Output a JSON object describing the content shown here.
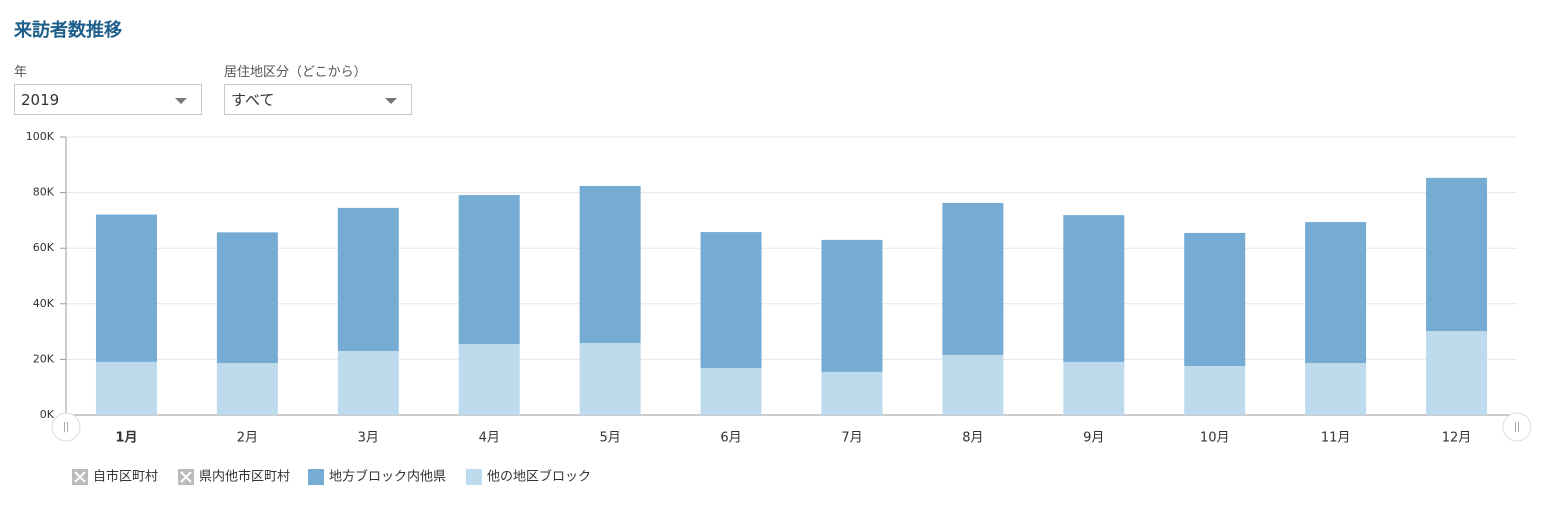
{
  "header": {
    "title": "来訪者数推移"
  },
  "controls": [
    {
      "label": "年",
      "value": "2019"
    },
    {
      "label": "居住地区分（どこから）",
      "value": "すべて"
    }
  ],
  "chart_data": {
    "type": "bar",
    "stacked": true,
    "categories": [
      "1月",
      "2月",
      "3月",
      "4月",
      "5月",
      "6月",
      "7月",
      "8月",
      "9月",
      "10月",
      "11月",
      "12月"
    ],
    "series": [
      {
        "name": "自市区町村",
        "visible": false
      },
      {
        "name": "県内他市区町村",
        "visible": false
      },
      {
        "name": "地方ブロック内他県",
        "color": "#76acd4",
        "visible": true,
        "values": [
          53,
          47,
          51.5,
          53.6,
          56.5,
          48.9,
          47.5,
          54.7,
          52.8,
          47.9,
          50.7,
          55.1
        ]
      },
      {
        "name": "他の地区ブロック",
        "color": "#bedbed",
        "visible": true,
        "values": [
          19.1,
          18.7,
          23,
          25.5,
          25.9,
          16.9,
          15.5,
          21.6,
          19.1,
          17.6,
          18.7,
          30.2
        ]
      }
    ],
    "ylim": [
      0,
      100
    ],
    "yticks": [
      {
        "value": 0,
        "label": "0K"
      },
      {
        "value": 20,
        "label": "20K"
      },
      {
        "value": 40,
        "label": "40K"
      },
      {
        "value": 60,
        "label": "60K"
      },
      {
        "value": 80,
        "label": "80K"
      },
      {
        "value": 100,
        "label": "100K"
      }
    ],
    "grid": true
  }
}
